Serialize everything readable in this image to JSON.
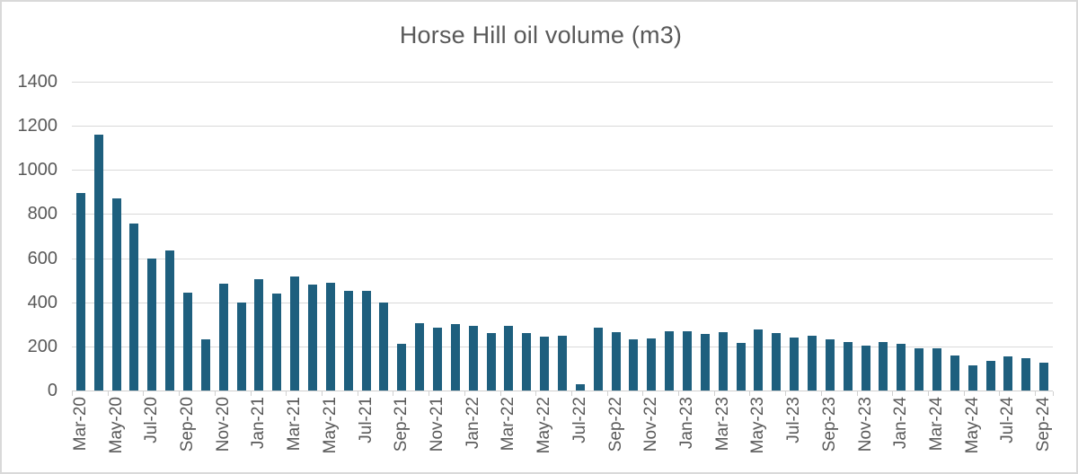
{
  "chart_data": {
    "type": "bar",
    "title": "Horse Hill oil volume (m3)",
    "categories": [
      "Mar-20",
      "Apr-20",
      "May-20",
      "Jun-20",
      "Jul-20",
      "Aug-20",
      "Sep-20",
      "Oct-20",
      "Nov-20",
      "Dec-20",
      "Jan-21",
      "Feb-21",
      "Mar-21",
      "Apr-21",
      "May-21",
      "Jun-21",
      "Jul-21",
      "Aug-21",
      "Sep-21",
      "Oct-21",
      "Nov-21",
      "Dec-21",
      "Jan-22",
      "Feb-22",
      "Mar-22",
      "Apr-22",
      "May-22",
      "Jun-22",
      "Jul-22",
      "Aug-22",
      "Sep-22",
      "Oct-22",
      "Nov-22",
      "Dec-22",
      "Jan-23",
      "Feb-23",
      "Mar-23",
      "Apr-23",
      "May-23",
      "Jun-23",
      "Jul-23",
      "Aug-23",
      "Sep-23",
      "Oct-23",
      "Nov-23",
      "Dec-23",
      "Jan-24",
      "Feb-24",
      "Mar-24",
      "Apr-24",
      "May-24",
      "Jun-24",
      "Jul-24",
      "Aug-24",
      "Sep-24"
    ],
    "values": [
      895,
      1160,
      870,
      755,
      600,
      635,
      445,
      230,
      485,
      400,
      505,
      440,
      515,
      480,
      490,
      450,
      450,
      400,
      210,
      305,
      285,
      300,
      295,
      260,
      295,
      260,
      245,
      250,
      30,
      285,
      265,
      230,
      235,
      270,
      270,
      255,
      265,
      215,
      275,
      260,
      240,
      250,
      230,
      220,
      205,
      220,
      210,
      190,
      190,
      160,
      115,
      135,
      155,
      145,
      125
    ],
    "x_tick_labels": [
      "Mar-20",
      "May-20",
      "Jul-20",
      "Sep-20",
      "Nov-20",
      "Jan-21",
      "Mar-21",
      "May-21",
      "Jul-21",
      "Sep-21",
      "Nov-21",
      "Jan-22",
      "Mar-22",
      "May-22",
      "Jul-22",
      "Sep-22",
      "Nov-22",
      "Jan-23",
      "Mar-23",
      "May-23",
      "Jul-23",
      "Sep-23",
      "Nov-23",
      "Jan-24",
      "Mar-24",
      "May-24",
      "Jul-24",
      "Sep-24"
    ],
    "x_label_every": 2,
    "y_ticks": [
      0,
      200,
      400,
      600,
      800,
      1000,
      1200,
      1400
    ],
    "ylim": [
      0,
      1400
    ],
    "grid": true,
    "legend": false,
    "bar_color": "#1e5f7e",
    "grid_color": "#d9d9d9",
    "axis_color": "#d0d0d0",
    "label_color": "#595959",
    "title_color": "#595959",
    "frame_border_color": "#d9d9d9",
    "background_color": "#ffffff"
  }
}
